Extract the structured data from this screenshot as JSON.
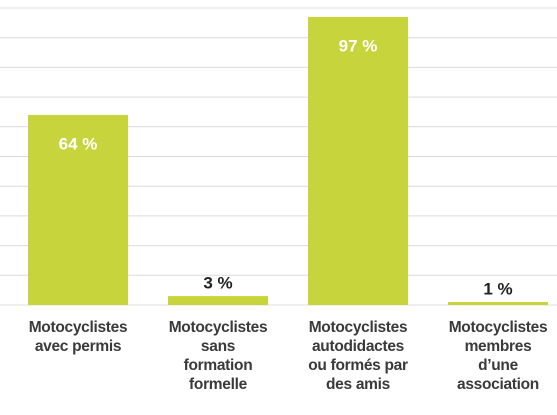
{
  "chart_data": {
    "type": "bar",
    "categories": [
      "Motocyclistes\navec permis",
      "Motocyclistes\nsans\nformation\nformelle",
      "Motocyclistes\nautodidactes\nou formés par\ndes amis",
      "Motocyclistes\nmembres\nd’une\nassociation"
    ],
    "values": [
      64,
      3,
      97,
      1
    ],
    "value_labels": [
      "64 %",
      "3 %",
      "97 %",
      "1 %"
    ],
    "color": "#c8d43c",
    "ylim": [
      0,
      100
    ],
    "yticks": [
      0,
      10,
      20,
      30,
      40,
      50,
      60,
      70,
      80,
      90,
      100
    ],
    "grid": true
  }
}
